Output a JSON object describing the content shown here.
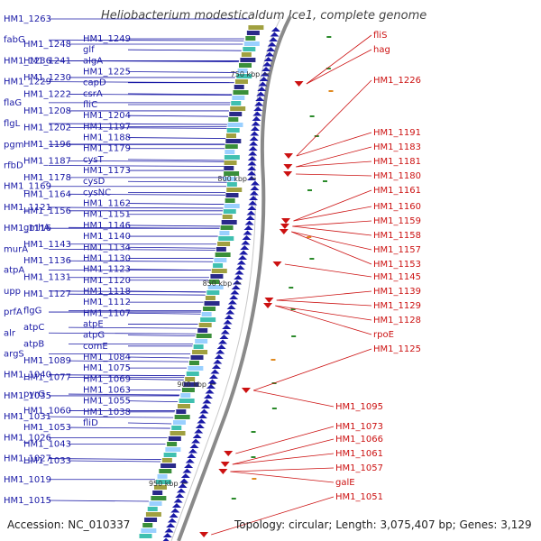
{
  "title": "Heliobacterium modesticaldum Ice1, complete genome",
  "footer": {
    "accession": "Accession: NC_010337",
    "summary": "Topology: circular; Length: 3,075,407 bp; Genes: 3,129"
  },
  "scale_ticks": [
    "750 kbp",
    "800 kbp",
    "850 kbp",
    "900 kbp",
    "950 kbp"
  ],
  "left_col1": [
    "HM1_1263",
    "fabG",
    "HM1_1236",
    "HM1_1229",
    "flaG",
    "flgL",
    "pgm",
    "rfbD",
    "HM1_1169",
    "HM1_1121",
    "HM1_1116",
    "murA",
    "atpA",
    "upp",
    "prfA",
    "alr",
    "argS",
    "HM1_1040",
    "HM1_1035",
    "HM1_1031",
    "HM1_1026",
    "HM1_1027",
    "HM1_1019",
    "HM1_1015"
  ],
  "left_col2": [
    "HM1_1248",
    "HM1_1241",
    "HM1_1230",
    "HM1_1222",
    "HM1_1208",
    "HM1_1202",
    "HM1_1196",
    "HM1_1187",
    "HM1_1178",
    "HM1_1164",
    "HM1_1156",
    "gmhA",
    "HM1_1143",
    "HM1_1136",
    "HM1_1131",
    "HM1_1127",
    "flgG",
    "atpC",
    "atpB",
    "HM1_1089",
    "HM1_1077",
    "pyrG",
    "HM1_1060",
    "HM1_1053",
    "HM1_1043",
    "HM1_1033"
  ],
  "left_col3": [
    "HM1_1249",
    "glf",
    "algA",
    "HM1_1225",
    "capD",
    "csrA",
    "fliC",
    "HM1_1204",
    "HM1_1197",
    "HM1_1188",
    "HM1_1179",
    "cysT",
    "HM1_1173",
    "cysD",
    "cysNC",
    "HM1_1162",
    "HM1_1151",
    "HM1_1146",
    "HM1_1140",
    "HM1_1134",
    "HM1_1130",
    "HM1_1123",
    "HM1_1120",
    "HM1_1118",
    "HM1_1112",
    "HM1_1107",
    "atpE",
    "atpG",
    "comE",
    "HM1_1084",
    "HM1_1075",
    "HM1_1069",
    "HM1_1063",
    "HM1_1055",
    "HM1_1038",
    "fliD"
  ],
  "right_labels": [
    "fliS",
    "hag",
    "HM1_1226",
    "HM1_1191",
    "HM1_1183",
    "HM1_1181",
    "HM1_1180",
    "HM1_1161",
    "HM1_1160",
    "HM1_1159",
    "HM1_1158",
    "HM1_1157",
    "HM1_1153",
    "HM1_1145",
    "HM1_1139",
    "HM1_1129",
    "HM1_1128",
    "rpoE",
    "HM1_1125",
    "HM1_1095",
    "HM1_1073",
    "HM1_1066",
    "HM1_1061",
    "HM1_1057",
    "galE",
    "HM1_1051"
  ],
  "colors": {
    "forward": "#1a1aa6",
    "reverse": "#cc1111",
    "backbone": "#8c8c8c"
  }
}
